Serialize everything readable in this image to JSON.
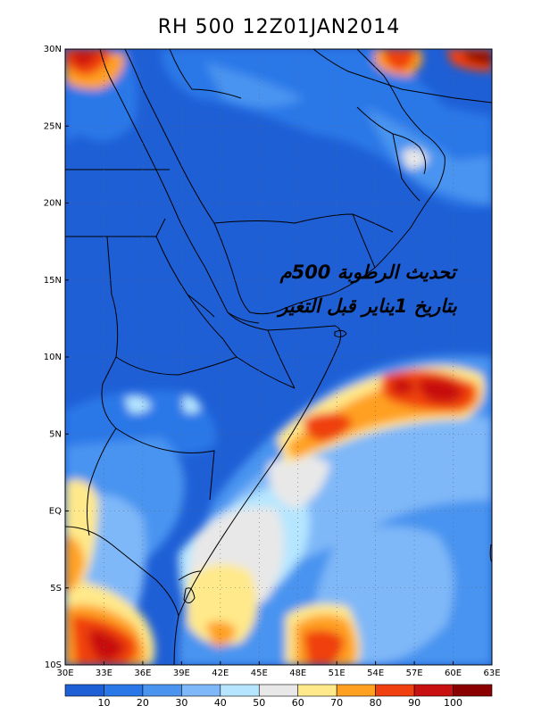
{
  "title": "RH 500 12Z01JAN2014",
  "overlay_text": {
    "line1": "تحديث الرطوبة 500م",
    "line2": "بتاريخ 1يناير قبل التغير"
  },
  "map": {
    "lon_range": [
      30,
      63
    ],
    "lat_range": [
      -10,
      30
    ],
    "lon_ticks": [
      {
        "v": 30,
        "label": "30E"
      },
      {
        "v": 33,
        "label": "33E"
      },
      {
        "v": 36,
        "label": "36E"
      },
      {
        "v": 39,
        "label": "39E"
      },
      {
        "v": 42,
        "label": "42E"
      },
      {
        "v": 45,
        "label": "45E"
      },
      {
        "v": 48,
        "label": "48E"
      },
      {
        "v": 51,
        "label": "51E"
      },
      {
        "v": 54,
        "label": "54E"
      },
      {
        "v": 57,
        "label": "57E"
      },
      {
        "v": 60,
        "label": "60E"
      },
      {
        "v": 63,
        "label": "63E"
      }
    ],
    "lat_ticks": [
      {
        "v": 30,
        "label": "30N"
      },
      {
        "v": 25,
        "label": "25N"
      },
      {
        "v": 20,
        "label": "20N"
      },
      {
        "v": 15,
        "label": "15N"
      },
      {
        "v": 10,
        "label": "10N"
      },
      {
        "v": 5,
        "label": "5N"
      },
      {
        "v": 0,
        "label": "EQ"
      },
      {
        "v": -5,
        "label": "5S"
      },
      {
        "v": -10,
        "label": "10S"
      }
    ]
  },
  "colorbar": {
    "colors": [
      "#1e5fd6",
      "#2a78e8",
      "#4a94f0",
      "#7fb8f8",
      "#b6e6ff",
      "#e8e8e8",
      "#ffe98a",
      "#ffa020",
      "#f04010",
      "#c81010",
      "#8a0000"
    ],
    "labels": [
      "10",
      "20",
      "30",
      "40",
      "50",
      "60",
      "70",
      "80",
      "90",
      "100"
    ]
  }
}
